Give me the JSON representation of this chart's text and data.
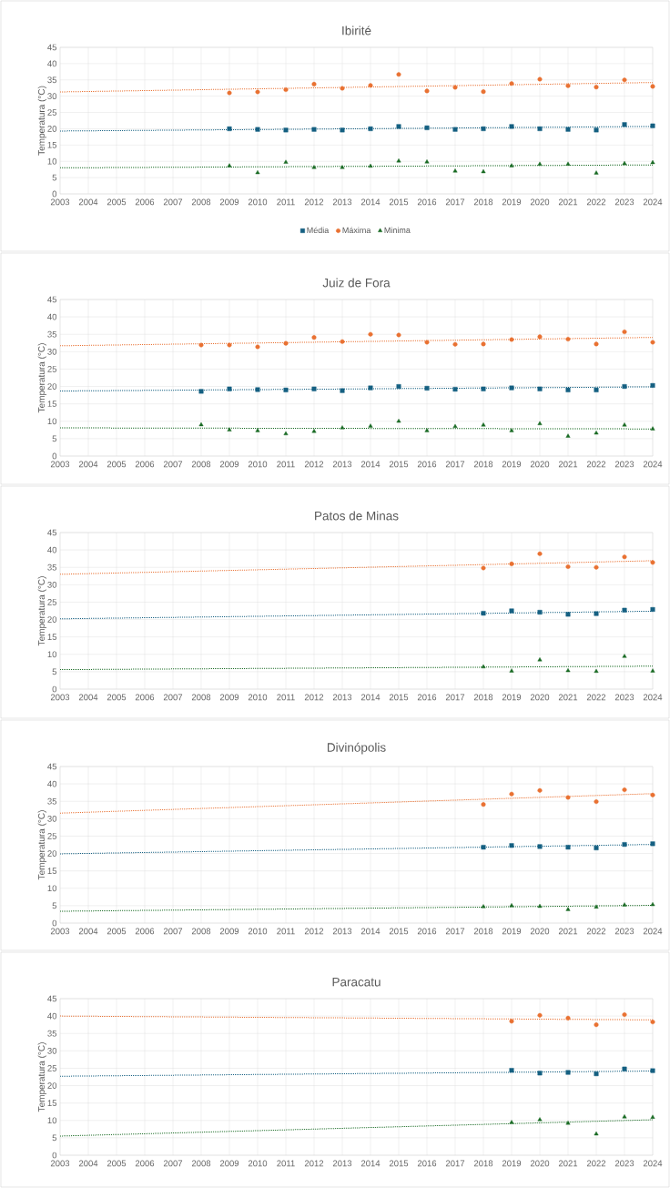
{
  "chart_data": [
    {
      "type": "scatter",
      "title": "Ibirité",
      "ylabel": "Temperatura (°C)",
      "xlim": [
        2003,
        2024
      ],
      "xticks": [
        2003,
        2004,
        2005,
        2006,
        2007,
        2008,
        2009,
        2010,
        2011,
        2012,
        2013,
        2014,
        2015,
        2016,
        2017,
        2018,
        2019,
        2020,
        2021,
        2022,
        2023,
        2024
      ],
      "ylim": [
        0,
        45
      ],
      "yticks": [
        0,
        5,
        10,
        15,
        20,
        25,
        30,
        35,
        40,
        45
      ],
      "grid": true,
      "legend": "bottom",
      "series": [
        {
          "name": "Média",
          "color": "#156082",
          "marker": "square",
          "x": [
            2009,
            2010,
            2011,
            2012,
            2013,
            2014,
            2015,
            2016,
            2017,
            2018,
            2019,
            2020,
            2021,
            2022,
            2023,
            2024
          ],
          "values": [
            20,
            19.8,
            19.6,
            19.8,
            19.6,
            20,
            20.7,
            20.3,
            19.8,
            20,
            20.7,
            20,
            19.8,
            19.6,
            21.3,
            20.9
          ]
        },
        {
          "name": "Máxima",
          "color": "#e97132",
          "marker": "circle",
          "x": [
            2009,
            2010,
            2011,
            2012,
            2013,
            2014,
            2015,
            2016,
            2017,
            2018,
            2019,
            2020,
            2021,
            2022,
            2023,
            2024
          ],
          "values": [
            31,
            31.3,
            32,
            33.7,
            32.4,
            33.3,
            36.7,
            31.6,
            32.7,
            31.4,
            33.9,
            35.2,
            33.2,
            32.8,
            35,
            33
          ]
        },
        {
          "name": "Minima",
          "color": "#196b24",
          "marker": "triangle",
          "x": [
            2009,
            2010,
            2011,
            2012,
            2013,
            2014,
            2015,
            2016,
            2017,
            2018,
            2019,
            2020,
            2021,
            2022,
            2023,
            2024
          ],
          "values": [
            8.6,
            6.5,
            9.7,
            8.1,
            8.1,
            8.5,
            10.1,
            9.8,
            7,
            6.8,
            8.6,
            9.1,
            9.1,
            6.4,
            9.3,
            9.6
          ]
        },
        {
          "type": "line",
          "color": "#156082",
          "marker": "none",
          "line_style": "dotted",
          "x": [
            2003,
            2024
          ],
          "values": [
            19.3,
            20.7
          ]
        },
        {
          "type": "line",
          "color": "#e97132",
          "marker": "none",
          "line_style": "dotted",
          "x": [
            2003,
            2024
          ],
          "values": [
            31.3,
            34.2
          ]
        },
        {
          "type": "line",
          "color": "#196b24",
          "marker": "none",
          "line_style": "dotted",
          "x": [
            2003,
            2024
          ],
          "values": [
            8,
            8.9
          ]
        }
      ]
    },
    {
      "type": "scatter",
      "title": "Juiz de Fora",
      "ylabel": "Temperatura (°C)",
      "xlim": [
        2003,
        2024
      ],
      "xticks": [
        2003,
        2004,
        2005,
        2006,
        2007,
        2008,
        2009,
        2010,
        2011,
        2012,
        2013,
        2014,
        2015,
        2016,
        2017,
        2018,
        2019,
        2020,
        2021,
        2022,
        2023,
        2024
      ],
      "ylim": [
        0,
        45
      ],
      "yticks": [
        0,
        5,
        10,
        15,
        20,
        25,
        30,
        35,
        40,
        45
      ],
      "grid": true,
      "series": [
        {
          "color": "#156082",
          "marker": "square",
          "x": [
            2008,
            2009,
            2010,
            2011,
            2012,
            2013,
            2014,
            2015,
            2016,
            2017,
            2018,
            2019,
            2020,
            2021,
            2022,
            2023,
            2024
          ],
          "values": [
            18.6,
            19.3,
            19.1,
            19,
            19.3,
            18.8,
            19.6,
            20,
            19.5,
            19.2,
            19.3,
            19.6,
            19.3,
            19,
            19,
            20,
            20.3
          ]
        },
        {
          "color": "#e97132",
          "marker": "circle",
          "x": [
            2008,
            2009,
            2010,
            2011,
            2012,
            2013,
            2014,
            2015,
            2016,
            2017,
            2018,
            2019,
            2020,
            2021,
            2022,
            2023,
            2024
          ],
          "values": [
            31.9,
            31.9,
            31.4,
            32.4,
            34.1,
            32.9,
            35,
            34.8,
            32.7,
            32.1,
            32.2,
            33.5,
            34.3,
            33.6,
            32.2,
            35.7,
            32.7
          ]
        },
        {
          "color": "#196b24",
          "marker": "triangle",
          "x": [
            2008,
            2009,
            2010,
            2011,
            2012,
            2013,
            2014,
            2015,
            2016,
            2017,
            2018,
            2019,
            2020,
            2021,
            2022,
            2023,
            2024
          ],
          "values": [
            9,
            7.5,
            7.3,
            6.4,
            7.1,
            8.1,
            8.6,
            10,
            7.3,
            8.5,
            8.9,
            7.3,
            9.3,
            5.7,
            6.6,
            8.9,
            7.8
          ]
        },
        {
          "type": "line",
          "color": "#156082",
          "marker": "none",
          "line_style": "dotted",
          "x": [
            2003,
            2024
          ],
          "values": [
            18.7,
            19.9
          ]
        },
        {
          "type": "line",
          "color": "#e97132",
          "marker": "none",
          "line_style": "dotted",
          "x": [
            2003,
            2024
          ],
          "values": [
            31.7,
            34.1
          ]
        },
        {
          "type": "line",
          "color": "#196b24",
          "marker": "none",
          "line_style": "dotted",
          "x": [
            2003,
            2024
          ],
          "values": [
            8.1,
            7.8
          ]
        }
      ]
    },
    {
      "type": "scatter",
      "title": "Patos de Minas",
      "ylabel": "Temperatura (°C)",
      "xlim": [
        2003,
        2024
      ],
      "xticks": [
        2003,
        2004,
        2005,
        2006,
        2007,
        2008,
        2009,
        2010,
        2011,
        2012,
        2013,
        2014,
        2015,
        2016,
        2017,
        2018,
        2019,
        2020,
        2021,
        2022,
        2023,
        2024
      ],
      "ylim": [
        0,
        45
      ],
      "yticks": [
        0,
        5,
        10,
        15,
        20,
        25,
        30,
        35,
        40,
        45
      ],
      "grid": true,
      "series": [
        {
          "color": "#156082",
          "marker": "square",
          "x": [
            2018,
            2019,
            2020,
            2021,
            2022,
            2023,
            2024
          ],
          "values": [
            21.8,
            22.5,
            22.1,
            21.5,
            21.7,
            22.7,
            22.9
          ]
        },
        {
          "color": "#e97132",
          "marker": "circle",
          "x": [
            2018,
            2019,
            2020,
            2021,
            2022,
            2023,
            2024
          ],
          "values": [
            34.8,
            36,
            38.9,
            35.2,
            35,
            38,
            36.4
          ]
        },
        {
          "color": "#196b24",
          "marker": "triangle",
          "x": [
            2018,
            2019,
            2020,
            2021,
            2022,
            2023,
            2024
          ],
          "values": [
            6.4,
            5.2,
            8.4,
            5.3,
            5.1,
            9.4,
            5.2
          ]
        },
        {
          "type": "line",
          "color": "#156082",
          "marker": "none",
          "line_style": "dotted",
          "x": [
            2003,
            2024
          ],
          "values": [
            20.2,
            22.4
          ]
        },
        {
          "type": "line",
          "color": "#e97132",
          "marker": "none",
          "line_style": "dotted",
          "x": [
            2003,
            2024
          ],
          "values": [
            33,
            36.9
          ]
        },
        {
          "type": "line",
          "color": "#196b24",
          "marker": "none",
          "line_style": "dotted",
          "x": [
            2003,
            2024
          ],
          "values": [
            5.6,
            6.6
          ]
        }
      ]
    },
    {
      "type": "scatter",
      "title": "Divinópolis",
      "ylabel": "Temperatura (°C)",
      "xlim": [
        2003,
        2024
      ],
      "xticks": [
        2003,
        2004,
        2005,
        2006,
        2007,
        2008,
        2009,
        2010,
        2011,
        2012,
        2013,
        2014,
        2015,
        2016,
        2017,
        2018,
        2019,
        2020,
        2021,
        2022,
        2023,
        2024
      ],
      "ylim": [
        0,
        45
      ],
      "yticks": [
        0,
        5,
        10,
        15,
        20,
        25,
        30,
        35,
        40,
        45
      ],
      "grid": true,
      "series": [
        {
          "color": "#156082",
          "marker": "square",
          "x": [
            2018,
            2019,
            2020,
            2021,
            2022,
            2023,
            2024
          ],
          "values": [
            21.8,
            22.3,
            22,
            21.8,
            21.6,
            22.6,
            22.8
          ]
        },
        {
          "color": "#e97132",
          "marker": "circle",
          "x": [
            2018,
            2019,
            2020,
            2021,
            2022,
            2023,
            2024
          ],
          "values": [
            34.1,
            37.1,
            38.1,
            36.1,
            34.9,
            38.3,
            36.8
          ]
        },
        {
          "color": "#196b24",
          "marker": "triangle",
          "x": [
            2018,
            2019,
            2020,
            2021,
            2022,
            2023,
            2024
          ],
          "values": [
            4.7,
            5,
            4.8,
            3.9,
            4.6,
            5.2,
            5.3
          ]
        },
        {
          "type": "line",
          "color": "#156082",
          "marker": "none",
          "line_style": "dotted",
          "x": [
            2003,
            2024
          ],
          "values": [
            19.9,
            22.6
          ]
        },
        {
          "type": "line",
          "color": "#e97132",
          "marker": "none",
          "line_style": "dotted",
          "x": [
            2003,
            2024
          ],
          "values": [
            31.6,
            37.2
          ]
        },
        {
          "type": "line",
          "color": "#196b24",
          "marker": "none",
          "line_style": "dotted",
          "x": [
            2003,
            2024
          ],
          "values": [
            3.4,
            5.1
          ]
        }
      ]
    },
    {
      "type": "scatter",
      "title": "Paracatu",
      "ylabel": "Temperatura (°C)",
      "xlim": [
        2003,
        2024
      ],
      "xticks": [
        2003,
        2004,
        2005,
        2006,
        2007,
        2008,
        2009,
        2010,
        2011,
        2012,
        2013,
        2014,
        2015,
        2016,
        2017,
        2018,
        2019,
        2020,
        2021,
        2022,
        2023,
        2024
      ],
      "ylim": [
        0,
        45
      ],
      "yticks": [
        0,
        5,
        10,
        15,
        20,
        25,
        30,
        35,
        40,
        45
      ],
      "grid": true,
      "series": [
        {
          "color": "#156082",
          "marker": "square",
          "x": [
            2019,
            2020,
            2021,
            2022,
            2023,
            2024
          ],
          "values": [
            24.4,
            23.6,
            23.8,
            23.4,
            24.8,
            24.3
          ]
        },
        {
          "color": "#e97132",
          "marker": "circle",
          "x": [
            2019,
            2020,
            2021,
            2022,
            2023,
            2024
          ],
          "values": [
            38.5,
            40.2,
            39.4,
            37.5,
            40.4,
            38.3
          ]
        },
        {
          "color": "#196b24",
          "marker": "triangle",
          "x": [
            2019,
            2020,
            2021,
            2022,
            2023,
            2024
          ],
          "values": [
            9.4,
            10.2,
            9.2,
            6.1,
            11,
            10.9
          ]
        },
        {
          "type": "line",
          "color": "#156082",
          "marker": "none",
          "line_style": "dotted",
          "x": [
            2003,
            2024
          ],
          "values": [
            22.7,
            24.2
          ]
        },
        {
          "type": "line",
          "color": "#e97132",
          "marker": "none",
          "line_style": "dotted",
          "x": [
            2003,
            2024
          ],
          "values": [
            40,
            38.9
          ]
        },
        {
          "type": "line",
          "color": "#196b24",
          "marker": "none",
          "line_style": "dotted",
          "x": [
            2003,
            2024
          ],
          "values": [
            5.5,
            10.2
          ]
        }
      ]
    }
  ]
}
